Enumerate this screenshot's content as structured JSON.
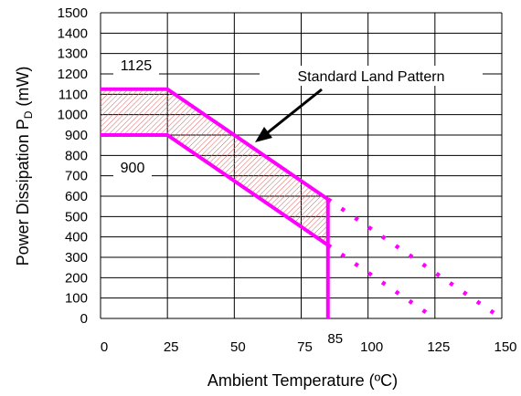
{
  "chart_data": {
    "type": "line",
    "xlabel": "Ambient Temperature (ºC)",
    "ylabel_main": "Power Dissipation P",
    "ylabel_sub": "D",
    "ylabel_unit": " (mW)",
    "xlim": [
      0,
      150
    ],
    "ylim": [
      0,
      1500
    ],
    "x_ticks": [
      "0",
      "25",
      "50",
      "75",
      "100",
      "125",
      "150"
    ],
    "x_tick_values": [
      0,
      25,
      50,
      75,
      100,
      125,
      150
    ],
    "x_extra_tick": {
      "label": "85",
      "value": 85
    },
    "y_ticks": [
      "0",
      "100",
      "200",
      "300",
      "400",
      "500",
      "600",
      "700",
      "800",
      "900",
      "1000",
      "1100",
      "1200",
      "1300",
      "1400",
      "1500"
    ],
    "y_tick_values": [
      0,
      100,
      200,
      300,
      400,
      500,
      600,
      700,
      800,
      900,
      1000,
      1100,
      1200,
      1300,
      1400,
      1500
    ],
    "grid": true,
    "series": [
      {
        "label": "1125",
        "style": "solid",
        "points": [
          [
            0,
            1125
          ],
          [
            25,
            1125
          ],
          [
            85,
            585
          ]
        ]
      },
      {
        "label": "900",
        "style": "solid",
        "points": [
          [
            0,
            900
          ],
          [
            25,
            900
          ],
          [
            85,
            360
          ]
        ]
      },
      {
        "style": "dotted",
        "points": [
          [
            85,
            585
          ],
          [
            150,
            0
          ]
        ]
      },
      {
        "style": "dotted",
        "points": [
          [
            85,
            360
          ],
          [
            125,
            0
          ]
        ]
      }
    ],
    "cutoff": {
      "x": 85,
      "from": 0,
      "to": 585
    },
    "band_between": [
      "1125",
      "900"
    ],
    "annotations": [
      {
        "id": "upper",
        "text": "1125"
      },
      {
        "id": "lower",
        "text": "900"
      },
      {
        "id": "pattern",
        "text": "Standard Land Pattern"
      }
    ],
    "colors": {
      "curve": "#ff00ff",
      "hatch": "#e06060",
      "grid": "#000000"
    }
  }
}
